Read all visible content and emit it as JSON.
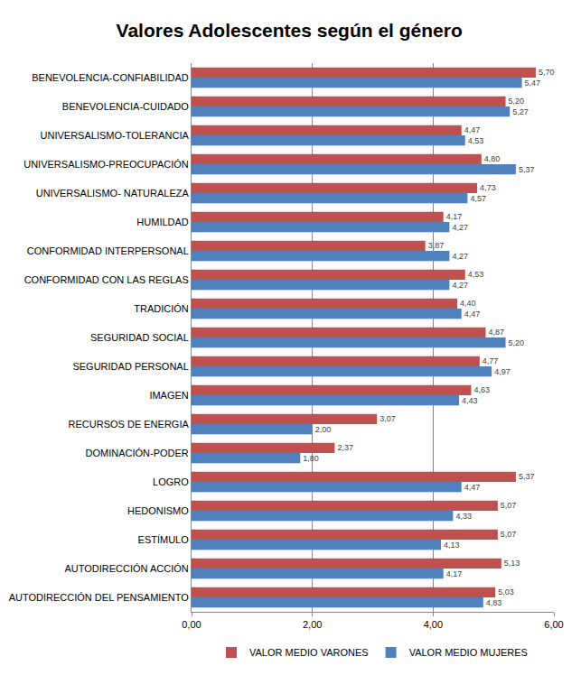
{
  "chart_data": {
    "type": "bar",
    "title": "Valores Adolescentes según el género",
    "orientation": "horizontal",
    "categories": [
      "BENEVOLENCIA-CONFIABILIDAD",
      "BENEVOLENCIA-CUIDADO",
      "UNIVERSALISMO-TOLERANCIA",
      "UNIVERSALISMO-PREOCUPACIÓN",
      "UNIVERSALISMO- NATURALEZA",
      "HUMILDAD",
      "CONFORMIDAD INTERPERSONAL",
      "CONFORMIDAD CON LAS REGLAS",
      "TRADICIÓN",
      "SEGURIDAD SOCIAL",
      "SEGURIDAD PERSONAL",
      "IMAGEN",
      "RECURSOS DE ENERGIA",
      "DOMINACIÓN-PODER",
      "LOGRO",
      "HEDONISMO",
      "ESTÍMULO",
      "AUTODIRECCIÓN ACCIÓN",
      "AUTODIRECCIÓN DEL PENSAMIENTO"
    ],
    "series": [
      {
        "name": "VALOR MEDIO VARONES",
        "color": "#c0504d",
        "values": [
          5.7,
          5.2,
          4.47,
          4.8,
          4.73,
          4.17,
          3.87,
          4.53,
          4.4,
          4.87,
          4.77,
          4.63,
          3.07,
          2.37,
          5.37,
          5.07,
          5.07,
          5.13,
          5.03
        ],
        "value_labels": [
          "5,70",
          "5,20",
          "4,47",
          "4,80",
          "4,73",
          "4,17",
          "3,87",
          "4,53",
          "4,40",
          "4,87",
          "4,77",
          "4,63",
          "3,07",
          "2,37",
          "5,37",
          "5,07",
          "5,07",
          "5,13",
          "5,03"
        ]
      },
      {
        "name": "VALOR MEDIO MUJERES",
        "color": "#4f81bd",
        "values": [
          5.47,
          5.27,
          4.53,
          5.37,
          4.57,
          4.27,
          4.27,
          4.27,
          4.47,
          5.2,
          4.97,
          4.43,
          2.0,
          1.8,
          4.47,
          4.33,
          4.13,
          4.17,
          4.83
        ],
        "value_labels": [
          "5,47",
          "5,27",
          "4,53",
          "5,37",
          "4,57",
          "4,27",
          "4,27",
          "4,27",
          "4,47",
          "5,20",
          "4,97",
          "4,43",
          "2,00",
          "1,80",
          "4,47",
          "4,33",
          "4,13",
          "4,17",
          "4,83"
        ]
      }
    ],
    "xlim": [
      0,
      6
    ],
    "xticks": [
      {
        "value": 0,
        "label": "0,00"
      },
      {
        "value": 2,
        "label": "2,00"
      },
      {
        "value": 4,
        "label": "4,00"
      },
      {
        "value": 6,
        "label": "6,00"
      }
    ],
    "grid": true,
    "legend": "bottom",
    "data_labels": true
  }
}
